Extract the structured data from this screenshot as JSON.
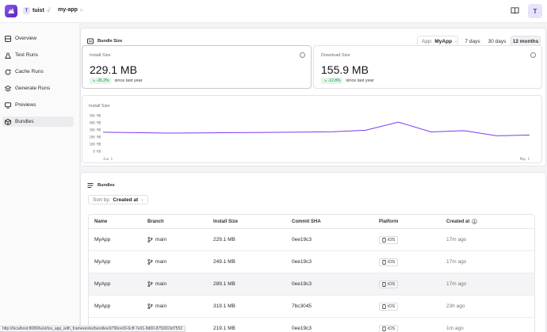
{
  "header": {
    "org_initial": "T",
    "org_name": "tuist",
    "project": "my-app",
    "user_initial": "T"
  },
  "sidebar": {
    "items": [
      {
        "label": "Overview",
        "icon": "grid-icon"
      },
      {
        "label": "Test Runs",
        "icon": "flask-icon"
      },
      {
        "label": "Cache Runs",
        "icon": "refresh-icon"
      },
      {
        "label": "Generate Runs",
        "icon": "layers-icon"
      },
      {
        "label": "Previews",
        "icon": "monitor-icon"
      },
      {
        "label": "Bundles",
        "icon": "package-icon",
        "active": true
      }
    ]
  },
  "bundle_size": {
    "title": "Bundle Size",
    "app_label": "App:",
    "app_value": "MyApp",
    "ranges": [
      "7 days",
      "30 days",
      "12 months"
    ],
    "selected_range": "12 months",
    "install": {
      "label": "Install Size",
      "value": "229.1 MB",
      "delta": "↘ -26.2%",
      "since": "since last year"
    },
    "download": {
      "label": "Download Size",
      "value": "155.9 MB",
      "delta": "↘ -12.8%",
      "since": "since last year"
    },
    "chart_title": "Install Size"
  },
  "chart_data": {
    "type": "line",
    "title": "Install Size",
    "x_tick_labels": [
      "Jun 1",
      "May 1"
    ],
    "y_tick_labels": [
      "500 MB",
      "400 MB",
      "300 MB",
      "200 MB",
      "100 MB",
      "0 KB"
    ],
    "ylim": [
      0,
      500
    ],
    "series": [
      {
        "values": [
          268,
          262,
          256,
          258,
          262,
          266,
          269,
          274,
          296,
          410,
          272,
          290,
          218,
          229
        ]
      }
    ],
    "color": "#7c3aed",
    "grid": false
  },
  "bundles": {
    "title": "Bundles",
    "sort_label": "Sort by:",
    "sort_value": "Created at",
    "columns": [
      "Name",
      "Branch",
      "Install Size",
      "Commit SHA",
      "Platform",
      "Created at"
    ],
    "rows": [
      {
        "name": "MyApp",
        "branch": "main",
        "size": "229.1 MB",
        "sha": "0ee19c3",
        "platform": "iOS",
        "created": "17m ago"
      },
      {
        "name": "MyApp",
        "branch": "main",
        "size": "249.1 MB",
        "sha": "0ee19c3",
        "platform": "iOS",
        "created": "17m ago"
      },
      {
        "name": "MyApp",
        "branch": "main",
        "size": "289.1 MB",
        "sha": "0ee19c3",
        "platform": "iOS",
        "created": "17m ago"
      },
      {
        "name": "MyApp",
        "branch": "main",
        "size": "319.1 MB",
        "sha": "7bc3045",
        "platform": "iOS",
        "created": "23h ago"
      },
      {
        "name": "MyApp",
        "branch": "main",
        "size": "219.1 MB",
        "sha": "0ee19c3",
        "platform": "iOS",
        "created": "1m ago"
      }
    ]
  },
  "status_url": "http://localhost:8080/tuist/ios_app_with_frameworks/bundles/d796ce00-6cff-7e01-8d00-8750019d7553"
}
